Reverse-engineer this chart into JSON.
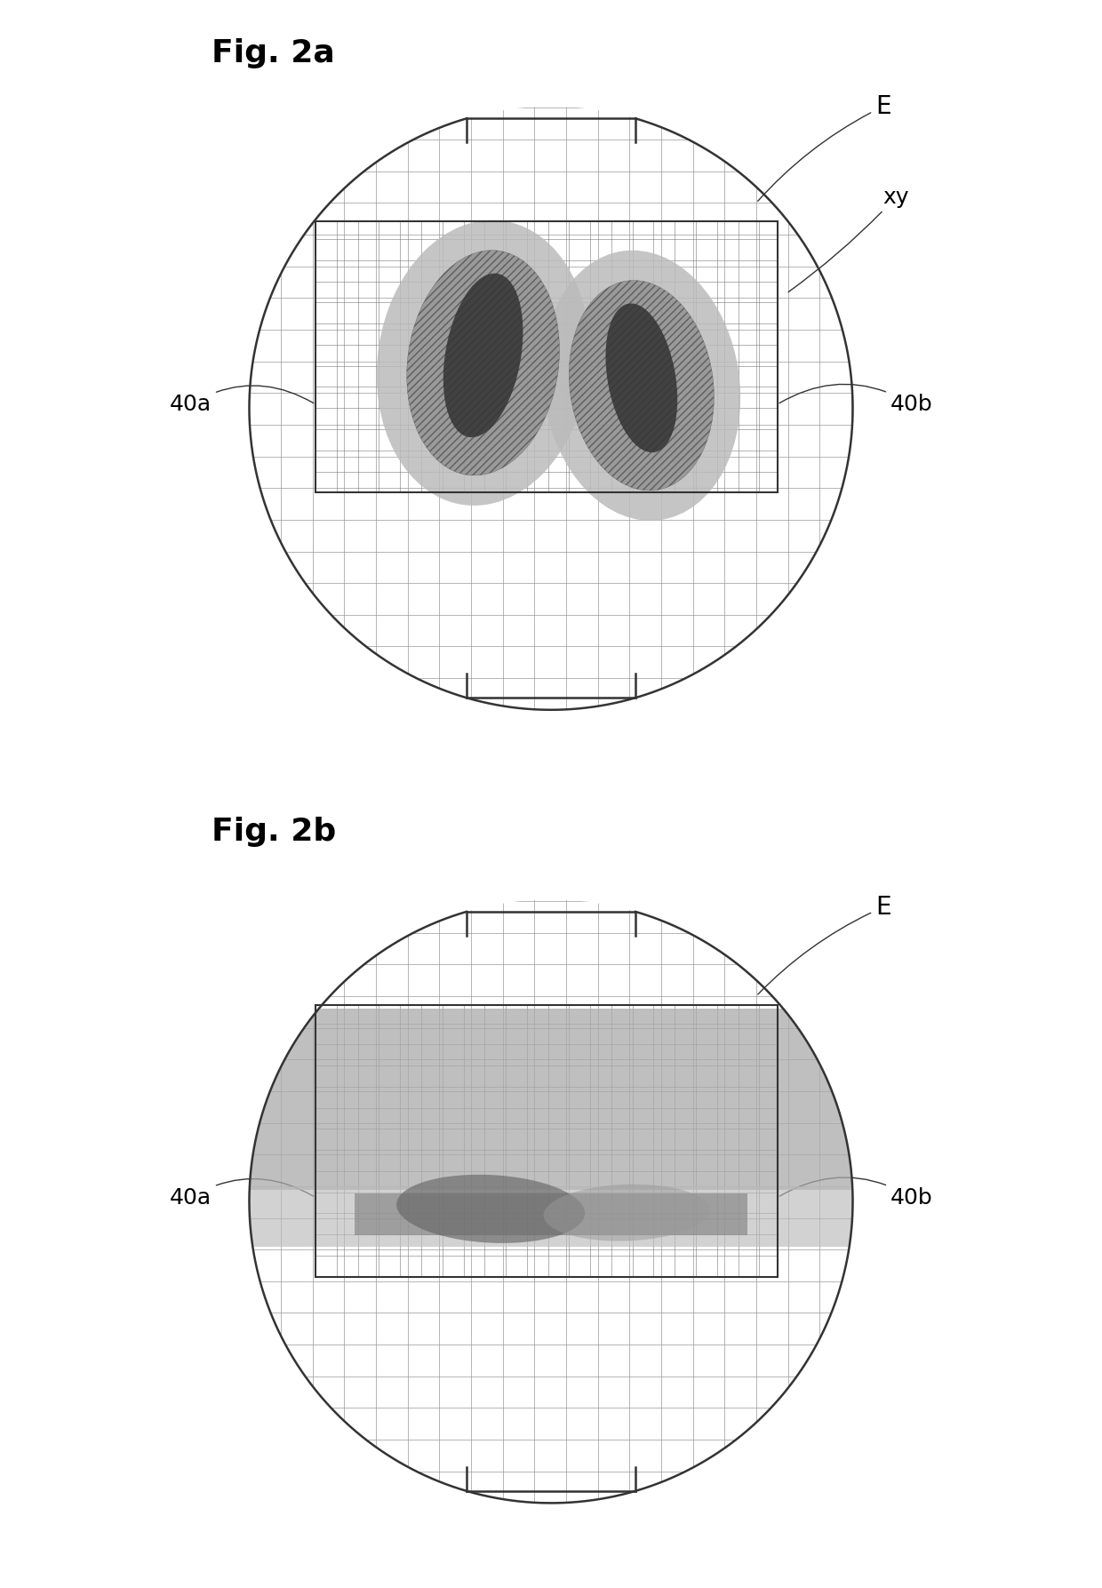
{
  "fig_title_a": "Fig. 2a",
  "fig_title_b": "Fig. 2b",
  "label_E": "E",
  "label_xy": "xy",
  "label_40a": "40a",
  "label_40b": "40b",
  "background_color": "#ffffff",
  "figsize": [
    12.4,
    17.87
  ],
  "dpi": 100,
  "grid_color": "#888888",
  "grid_lw": 0.5,
  "circle_lw": 1.8,
  "circle_color": "#333333"
}
